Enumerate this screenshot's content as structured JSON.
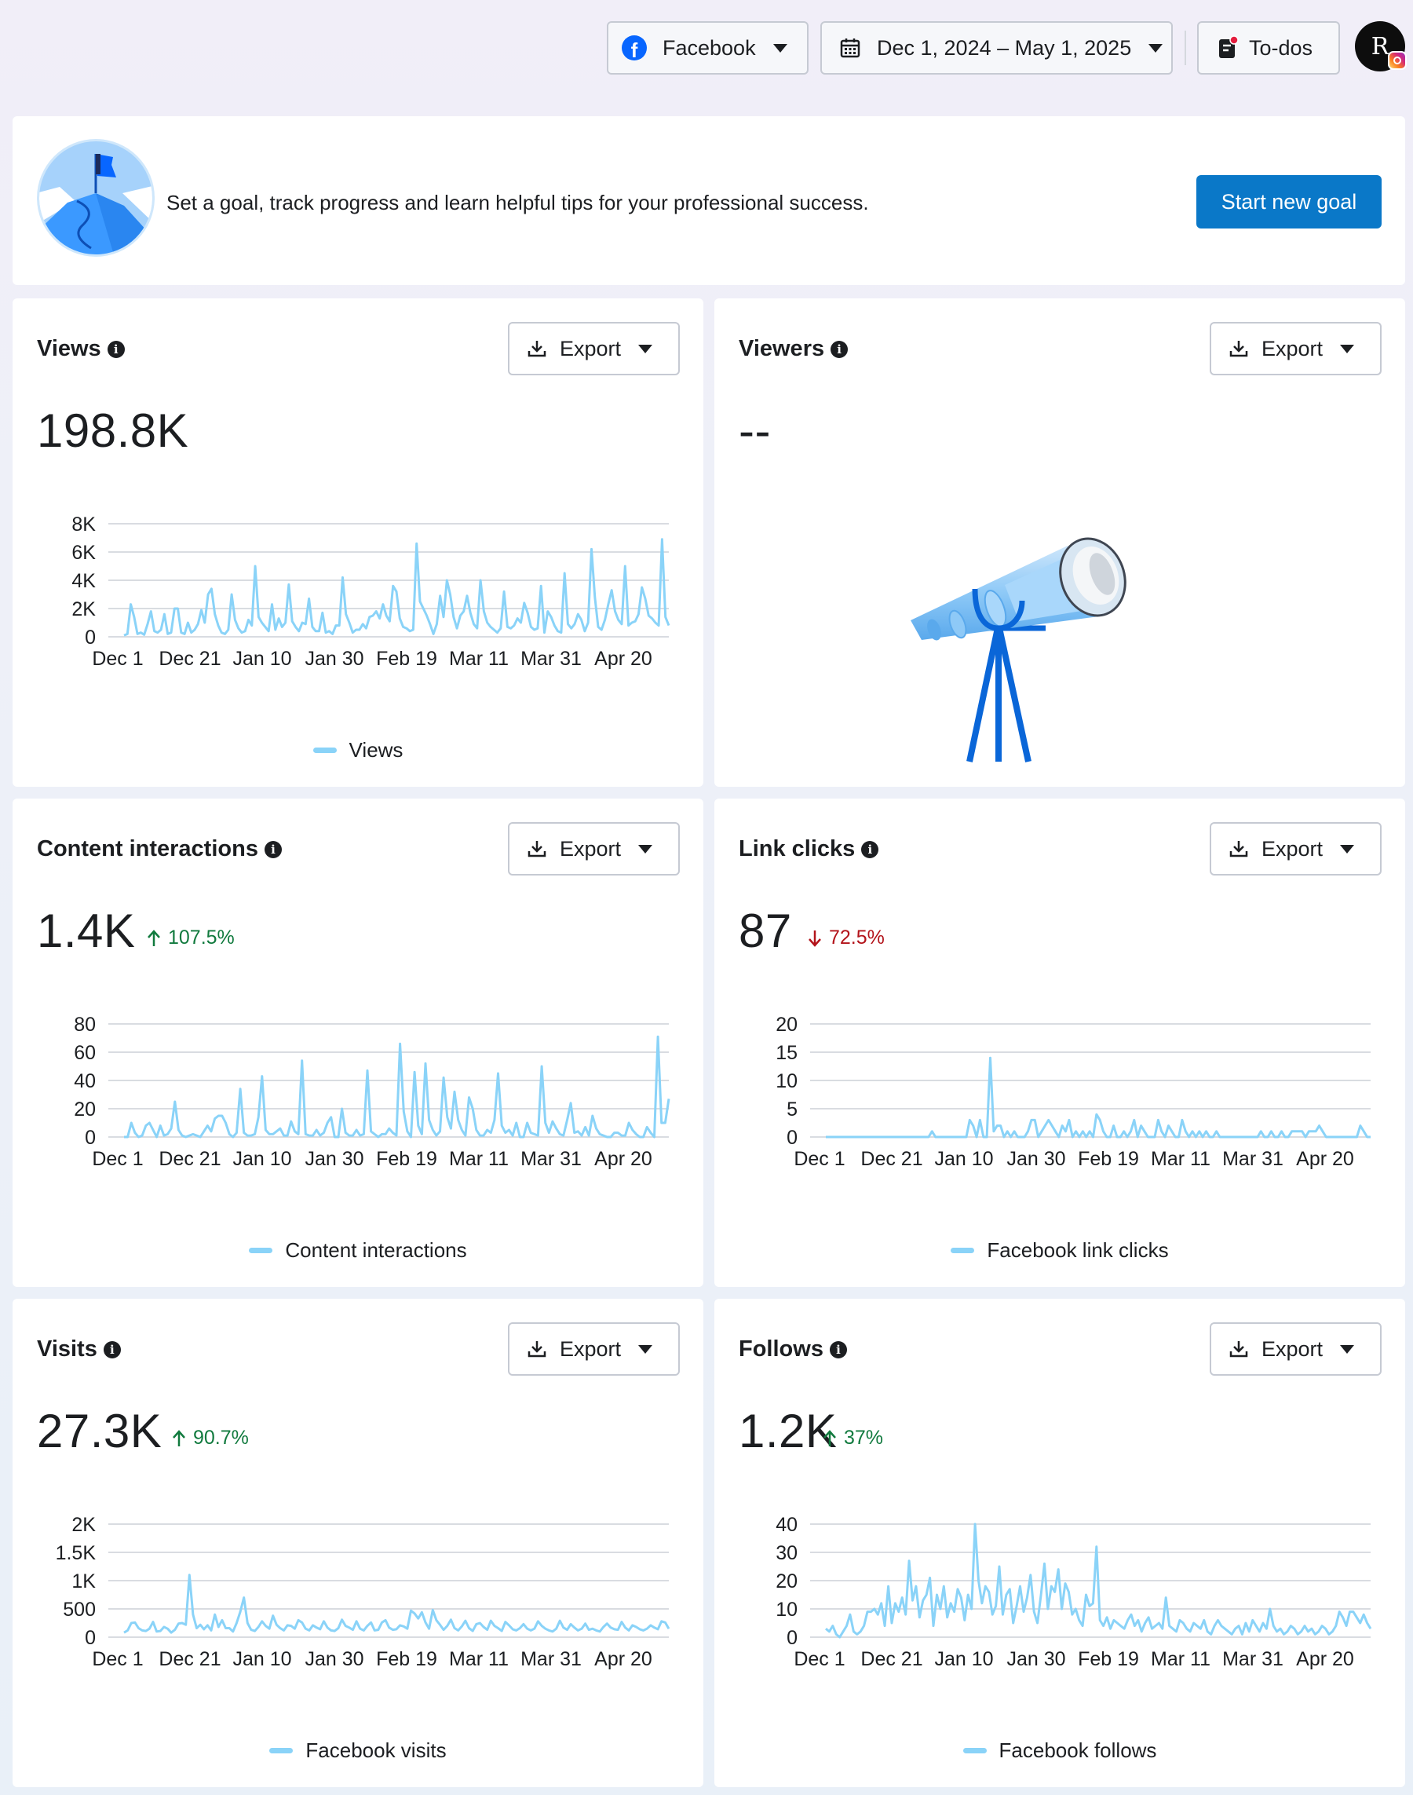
{
  "topbar": {
    "platform": "Facebook",
    "date_range": "Dec 1, 2024 – May 1, 2025",
    "todos": "To-dos",
    "avatar_letter": "R"
  },
  "goal": {
    "text": "Set a goal, track progress and learn helpful tips for your professional success.",
    "button": "Start new goal"
  },
  "export_label": "Export",
  "colors": {
    "line": "#8ad3f8",
    "accent": "#0a78c8",
    "up": "#117a3e",
    "down": "#b3141b"
  },
  "cards": {
    "views": {
      "title": "Views",
      "value": "198.8K",
      "legend": "Views"
    },
    "viewers": {
      "title": "Viewers",
      "value": "--"
    },
    "interactions": {
      "title": "Content interactions",
      "value": "1.4K",
      "change": "107.5%",
      "direction": "up",
      "legend": "Content interactions"
    },
    "links": {
      "title": "Link clicks",
      "value": "87",
      "change": "72.5%",
      "direction": "down",
      "legend": "Facebook link clicks"
    },
    "visits": {
      "title": "Visits",
      "value": "27.3K",
      "change": "90.7%",
      "direction": "up",
      "legend": "Facebook visits"
    },
    "follows": {
      "title": "Follows",
      "value": "1.2K",
      "change": "37%",
      "direction": "up",
      "legend": "Facebook follows"
    }
  },
  "chart_data": [
    {
      "id": "views",
      "type": "line",
      "series_name": "Views",
      "x_ticks": [
        "Dec 1",
        "Dec 21",
        "Jan 10",
        "Jan 30",
        "Feb 19",
        "Mar 11",
        "Mar 31",
        "Apr 20"
      ],
      "y_ticks": [
        "0",
        "2K",
        "4K",
        "6K",
        "8K"
      ],
      "ylim": [
        0,
        8000
      ],
      "values": [
        100,
        200,
        2300,
        1400,
        200,
        300,
        150,
        900,
        1800,
        400,
        300,
        500,
        1600,
        200,
        300,
        2000,
        2000,
        300,
        200,
        1000,
        300,
        500,
        900,
        1900,
        1000,
        3000,
        3400,
        1600,
        800,
        300,
        200,
        500,
        3000,
        1200,
        600,
        300,
        400,
        1200,
        800,
        5000,
        1400,
        1000,
        700,
        400,
        2300,
        500,
        1300,
        700,
        1000,
        3700,
        1100,
        700,
        400,
        1000,
        900,
        2700,
        700,
        400,
        400,
        1700,
        300,
        400,
        200,
        800,
        800,
        4200,
        1600,
        1000,
        300,
        500,
        500,
        900,
        600,
        1400,
        1500,
        1800,
        1300,
        2300,
        1500,
        1100,
        3600,
        3200,
        1300,
        700,
        600,
        400,
        500,
        6600,
        2500,
        2000,
        1500,
        900,
        200,
        900,
        2900,
        1400,
        4000,
        3000,
        1400,
        600,
        1500,
        1800,
        2900,
        1700,
        900,
        600,
        4000,
        1800,
        1000,
        700,
        500,
        300,
        600,
        3200,
        700,
        600,
        800,
        1300,
        1000,
        2400,
        1700,
        700,
        500,
        600,
        3600,
        300,
        1800,
        1400,
        800,
        400,
        300,
        4500,
        900,
        600,
        900,
        1600,
        1200,
        400,
        1000,
        6200,
        2800,
        700,
        500,
        1200,
        2300,
        3300,
        1800,
        1200,
        900,
        5000,
        800,
        1000,
        1100,
        1600,
        3500,
        2700,
        1500,
        1300,
        1000,
        800,
        6900,
        1400,
        800
      ]
    },
    {
      "id": "interactions",
      "type": "line",
      "series_name": "Content interactions",
      "x_ticks": [
        "Dec 1",
        "Dec 21",
        "Jan 10",
        "Jan 30",
        "Feb 19",
        "Mar 11",
        "Mar 31",
        "Apr 20"
      ],
      "y_ticks": [
        "0",
        "20",
        "40",
        "60",
        "80"
      ],
      "ylim": [
        0,
        80
      ],
      "values": [
        0,
        0,
        10,
        3,
        0,
        1,
        8,
        10,
        5,
        0,
        8,
        1,
        2,
        6,
        25,
        5,
        1,
        0,
        1,
        2,
        1,
        0,
        4,
        8,
        4,
        13,
        15,
        15,
        10,
        2,
        0,
        3,
        34,
        3,
        1,
        1,
        2,
        14,
        43,
        5,
        2,
        2,
        4,
        6,
        1,
        1,
        11,
        4,
        2,
        54,
        2,
        1,
        1,
        5,
        1,
        3,
        10,
        14,
        0,
        0,
        20,
        3,
        1,
        1,
        5,
        1,
        2,
        47,
        4,
        2,
        0,
        2,
        2,
        6,
        3,
        1,
        66,
        18,
        4,
        0,
        46,
        8,
        2,
        52,
        12,
        5,
        1,
        4,
        42,
        14,
        6,
        32,
        12,
        5,
        1,
        28,
        20,
        5,
        1,
        1,
        5,
        3,
        12,
        45,
        8,
        3,
        5,
        1,
        10,
        0,
        0,
        10,
        3,
        2,
        1,
        50,
        10,
        3,
        11,
        6,
        2,
        1,
        12,
        24,
        3,
        4,
        1,
        7,
        1,
        15,
        6,
        2,
        1,
        0,
        0,
        3,
        3,
        1,
        1,
        10,
        5,
        2,
        0,
        0,
        7,
        3,
        0,
        71,
        10,
        10,
        27
      ]
    },
    {
      "id": "links",
      "type": "line",
      "series_name": "Facebook link clicks",
      "x_ticks": [
        "Dec 1",
        "Dec 21",
        "Jan 10",
        "Jan 30",
        "Feb 19",
        "Mar 11",
        "Mar 31",
        "Apr 20"
      ],
      "y_ticks": [
        "0",
        "5",
        "10",
        "15",
        "20"
      ],
      "ylim": [
        0,
        20
      ],
      "values": [
        0,
        0,
        0,
        0,
        0,
        0,
        0,
        0,
        0,
        0,
        0,
        0,
        0,
        0,
        0,
        0,
        0,
        0,
        0,
        0,
        0,
        0,
        0,
        0,
        0,
        0,
        0,
        0,
        0,
        0,
        0,
        1,
        0,
        0,
        0,
        0,
        0,
        0,
        0,
        0,
        0,
        0,
        3,
        2,
        0,
        3,
        0,
        0,
        14,
        1,
        2,
        2,
        0,
        1,
        0,
        1,
        0,
        0,
        0,
        1,
        3,
        3,
        0,
        1,
        2,
        3,
        2,
        1,
        0,
        2,
        1,
        3,
        0,
        1,
        0,
        1,
        0,
        1,
        0,
        4,
        3,
        1,
        0,
        0,
        2,
        0,
        0,
        1,
        0,
        1,
        3,
        0,
        2,
        1,
        0,
        0,
        0,
        3,
        1,
        0,
        2,
        1,
        0,
        0,
        3,
        1,
        0,
        1,
        0,
        1,
        0,
        1,
        0,
        0,
        1,
        0,
        0,
        0,
        0,
        0,
        0,
        0,
        0,
        0,
        0,
        0,
        0,
        1,
        0,
        0,
        1,
        0,
        0,
        1,
        0,
        0,
        1,
        1,
        1,
        1,
        0,
        1,
        1,
        1,
        2,
        1,
        0,
        0,
        0,
        0,
        0,
        0,
        0,
        0,
        0,
        0,
        2,
        1,
        0,
        0
      ]
    },
    {
      "id": "visits",
      "type": "line",
      "series_name": "Facebook visits",
      "x_ticks": [
        "Dec 1",
        "Dec 21",
        "Jan 10",
        "Jan 30",
        "Feb 19",
        "Mar 11",
        "Mar 31",
        "Apr 20"
      ],
      "y_ticks": [
        "0",
        "500",
        "1K",
        "1.5K",
        "2K"
      ],
      "ylim": [
        0,
        2000
      ],
      "values": [
        80,
        120,
        250,
        260,
        160,
        120,
        110,
        150,
        270,
        100,
        110,
        180,
        150,
        80,
        130,
        240,
        250,
        220,
        1100,
        400,
        160,
        220,
        140,
        210,
        120,
        400,
        180,
        300,
        160,
        160,
        100,
        250,
        450,
        700,
        250,
        130,
        110,
        180,
        280,
        200,
        150,
        380,
        220,
        160,
        120,
        210,
        200,
        150,
        300,
        260,
        150,
        120,
        210,
        170,
        140,
        280,
        170,
        120,
        110,
        160,
        310,
        200,
        170,
        130,
        280,
        150,
        120,
        200,
        260,
        120,
        130,
        260,
        300,
        170,
        130,
        140,
        210,
        190,
        150,
        470,
        420,
        330,
        440,
        260,
        150,
        480,
        300,
        220,
        130,
        200,
        310,
        160,
        120,
        190,
        290,
        160,
        110,
        230,
        250,
        180,
        130,
        290,
        200,
        160,
        110,
        270,
        210,
        140,
        120,
        160,
        230,
        150,
        120,
        150,
        280,
        200,
        150,
        120,
        100,
        150,
        290,
        170,
        130,
        230,
        170,
        120,
        150,
        240,
        130,
        150,
        120,
        100,
        180,
        240,
        170,
        140,
        130,
        270,
        170,
        120,
        210,
        180,
        140,
        120,
        150,
        210,
        170,
        140,
        280,
        260,
        150
      ]
    },
    {
      "id": "follows",
      "type": "line",
      "series_name": "Facebook follows",
      "x_ticks": [
        "Dec 1",
        "Dec 21",
        "Jan 10",
        "Jan 30",
        "Feb 19",
        "Mar 11",
        "Mar 31",
        "Apr 20"
      ],
      "y_ticks": [
        "0",
        "10",
        "20",
        "30",
        "40"
      ],
      "ylim": [
        0,
        40
      ],
      "values": [
        3,
        2,
        4,
        1,
        0,
        2,
        4,
        8,
        2,
        1,
        2,
        4,
        9,
        9,
        10,
        8,
        12,
        4,
        18,
        5,
        12,
        9,
        14,
        8,
        27,
        13,
        18,
        7,
        13,
        15,
        21,
        4,
        15,
        10,
        18,
        7,
        12,
        9,
        17,
        14,
        6,
        15,
        10,
        40,
        20,
        12,
        18,
        16,
        8,
        11,
        25,
        8,
        15,
        17,
        5,
        11,
        18,
        9,
        14,
        22,
        9,
        5,
        15,
        26,
        10,
        18,
        16,
        24,
        10,
        19,
        16,
        8,
        10,
        6,
        4,
        15,
        11,
        12,
        32,
        6,
        4,
        7,
        3,
        6,
        5,
        4,
        3,
        6,
        8,
        4,
        6,
        2,
        5,
        7,
        3,
        4,
        5,
        3,
        14,
        4,
        3,
        2,
        6,
        5,
        3,
        2,
        5,
        4,
        3,
        6,
        2,
        1,
        4,
        6,
        4,
        3,
        2,
        1,
        3,
        4,
        1,
        5,
        2,
        6,
        4,
        2,
        5,
        3,
        10,
        4,
        2,
        3,
        1,
        2,
        4,
        3,
        1,
        2,
        4,
        2,
        3,
        1,
        2,
        4,
        3,
        1,
        2,
        4,
        9,
        7,
        4,
        9,
        9,
        7,
        5,
        8,
        5,
        3
      ]
    }
  ]
}
